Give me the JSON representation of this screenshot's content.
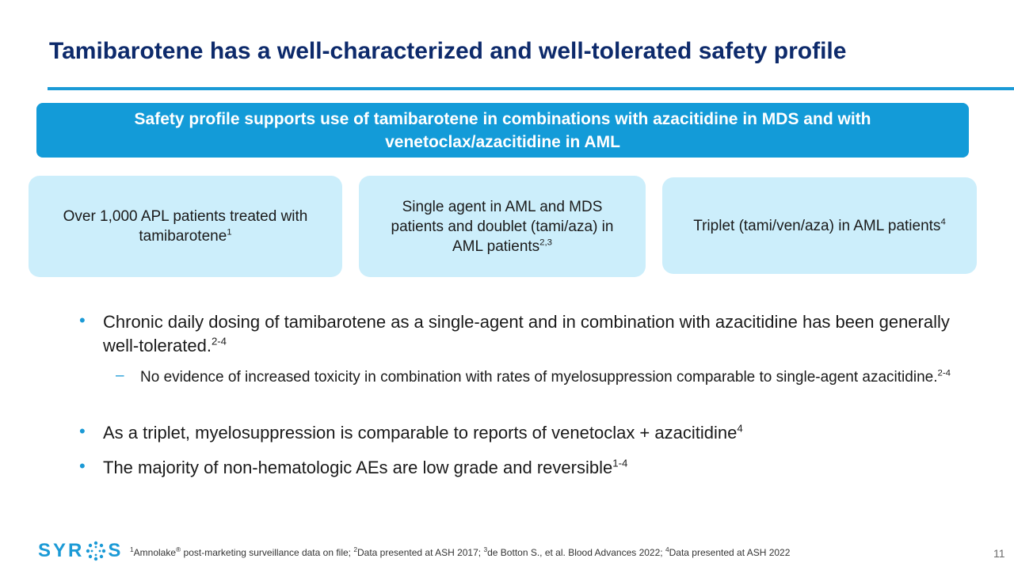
{
  "title": "Tamibarotene has a well-characterized and well-tolerated safety profile",
  "banner": "Safety profile supports use of tamibarotene in combinations with azacitidine in MDS and with venetoclax/azacitidine in AML",
  "cards": [
    {
      "text": "Over 1,000 APL patients treated with tamibarotene",
      "sup": "1"
    },
    {
      "text": "Single agent in AML and MDS patients and doublet (tami/aza) in AML patients",
      "sup": "2,3"
    },
    {
      "text": "Triplet (tami/ven/aza) in AML patients",
      "sup": "4"
    }
  ],
  "bullets": [
    {
      "text": "Chronic daily dosing of tamibarotene as a single-agent and in combination with azacitidine has been generally well-tolerated.",
      "sup": "2-4"
    },
    {
      "text": "No evidence of increased toxicity in combination with rates of myelosuppression comparable to single-agent azacitidine.",
      "sup": "2-4"
    },
    {
      "text": "As a triplet, myelosuppression is comparable to reports of venetoclax + azacitidine",
      "sup": "4"
    },
    {
      "text": "The majority of non-hematologic AEs are low grade and reversible",
      "sup": "1-4"
    }
  ],
  "footnote": {
    "n1": "1",
    "t1": "Amnolake",
    "reg": "®",
    "t1b": " post-marketing surveillance data on file; ",
    "n2": "2",
    "t2": "Data presented at ASH 2017; ",
    "n3": "3",
    "t3": "de Botton S., et al. Blood Advances 2022; ",
    "n4": "4",
    "t4": "Data presented at ASH 2022"
  },
  "page_number": "11",
  "logo": {
    "text_before": "SYR",
    "text_after": "S"
  },
  "colors": {
    "title": "#0d2a6b",
    "accent": "#1b9ad6",
    "card": "#cceefb"
  }
}
